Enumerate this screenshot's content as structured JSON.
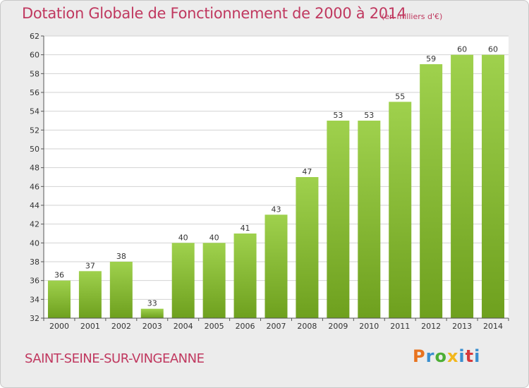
{
  "chart_data": {
    "type": "bar",
    "title": "Dotation Globale de Fonctionnement de 2000 à 2014",
    "subtitle": "(en milliers d'€)",
    "categories": [
      "2000",
      "2001",
      "2002",
      "2003",
      "2004",
      "2005",
      "2006",
      "2007",
      "2008",
      "2009",
      "2010",
      "2011",
      "2012",
      "2013",
      "2014"
    ],
    "values": [
      36,
      37,
      38,
      33,
      40,
      40,
      41,
      43,
      47,
      53,
      53,
      55,
      59,
      60,
      60
    ],
    "ylim": [
      32,
      62
    ],
    "yticks": [
      32,
      34,
      36,
      38,
      40,
      42,
      44,
      46,
      48,
      50,
      52,
      54,
      56,
      58,
      60,
      62
    ],
    "grid": true,
    "bar_color_top": "#9fd14d",
    "bar_color_bottom": "#6ea01e"
  },
  "commune": "SAINT-SEINE-SUR-VINGEANNE",
  "logo": {
    "p": "P",
    "r": "r",
    "o": "o",
    "x": "x",
    "i": "i",
    "t": "t",
    "i2": "i"
  },
  "colors": {
    "accent": "#c0385f",
    "background": "#ececec",
    "grid": "#d2d2d2",
    "axis": "#555555"
  }
}
